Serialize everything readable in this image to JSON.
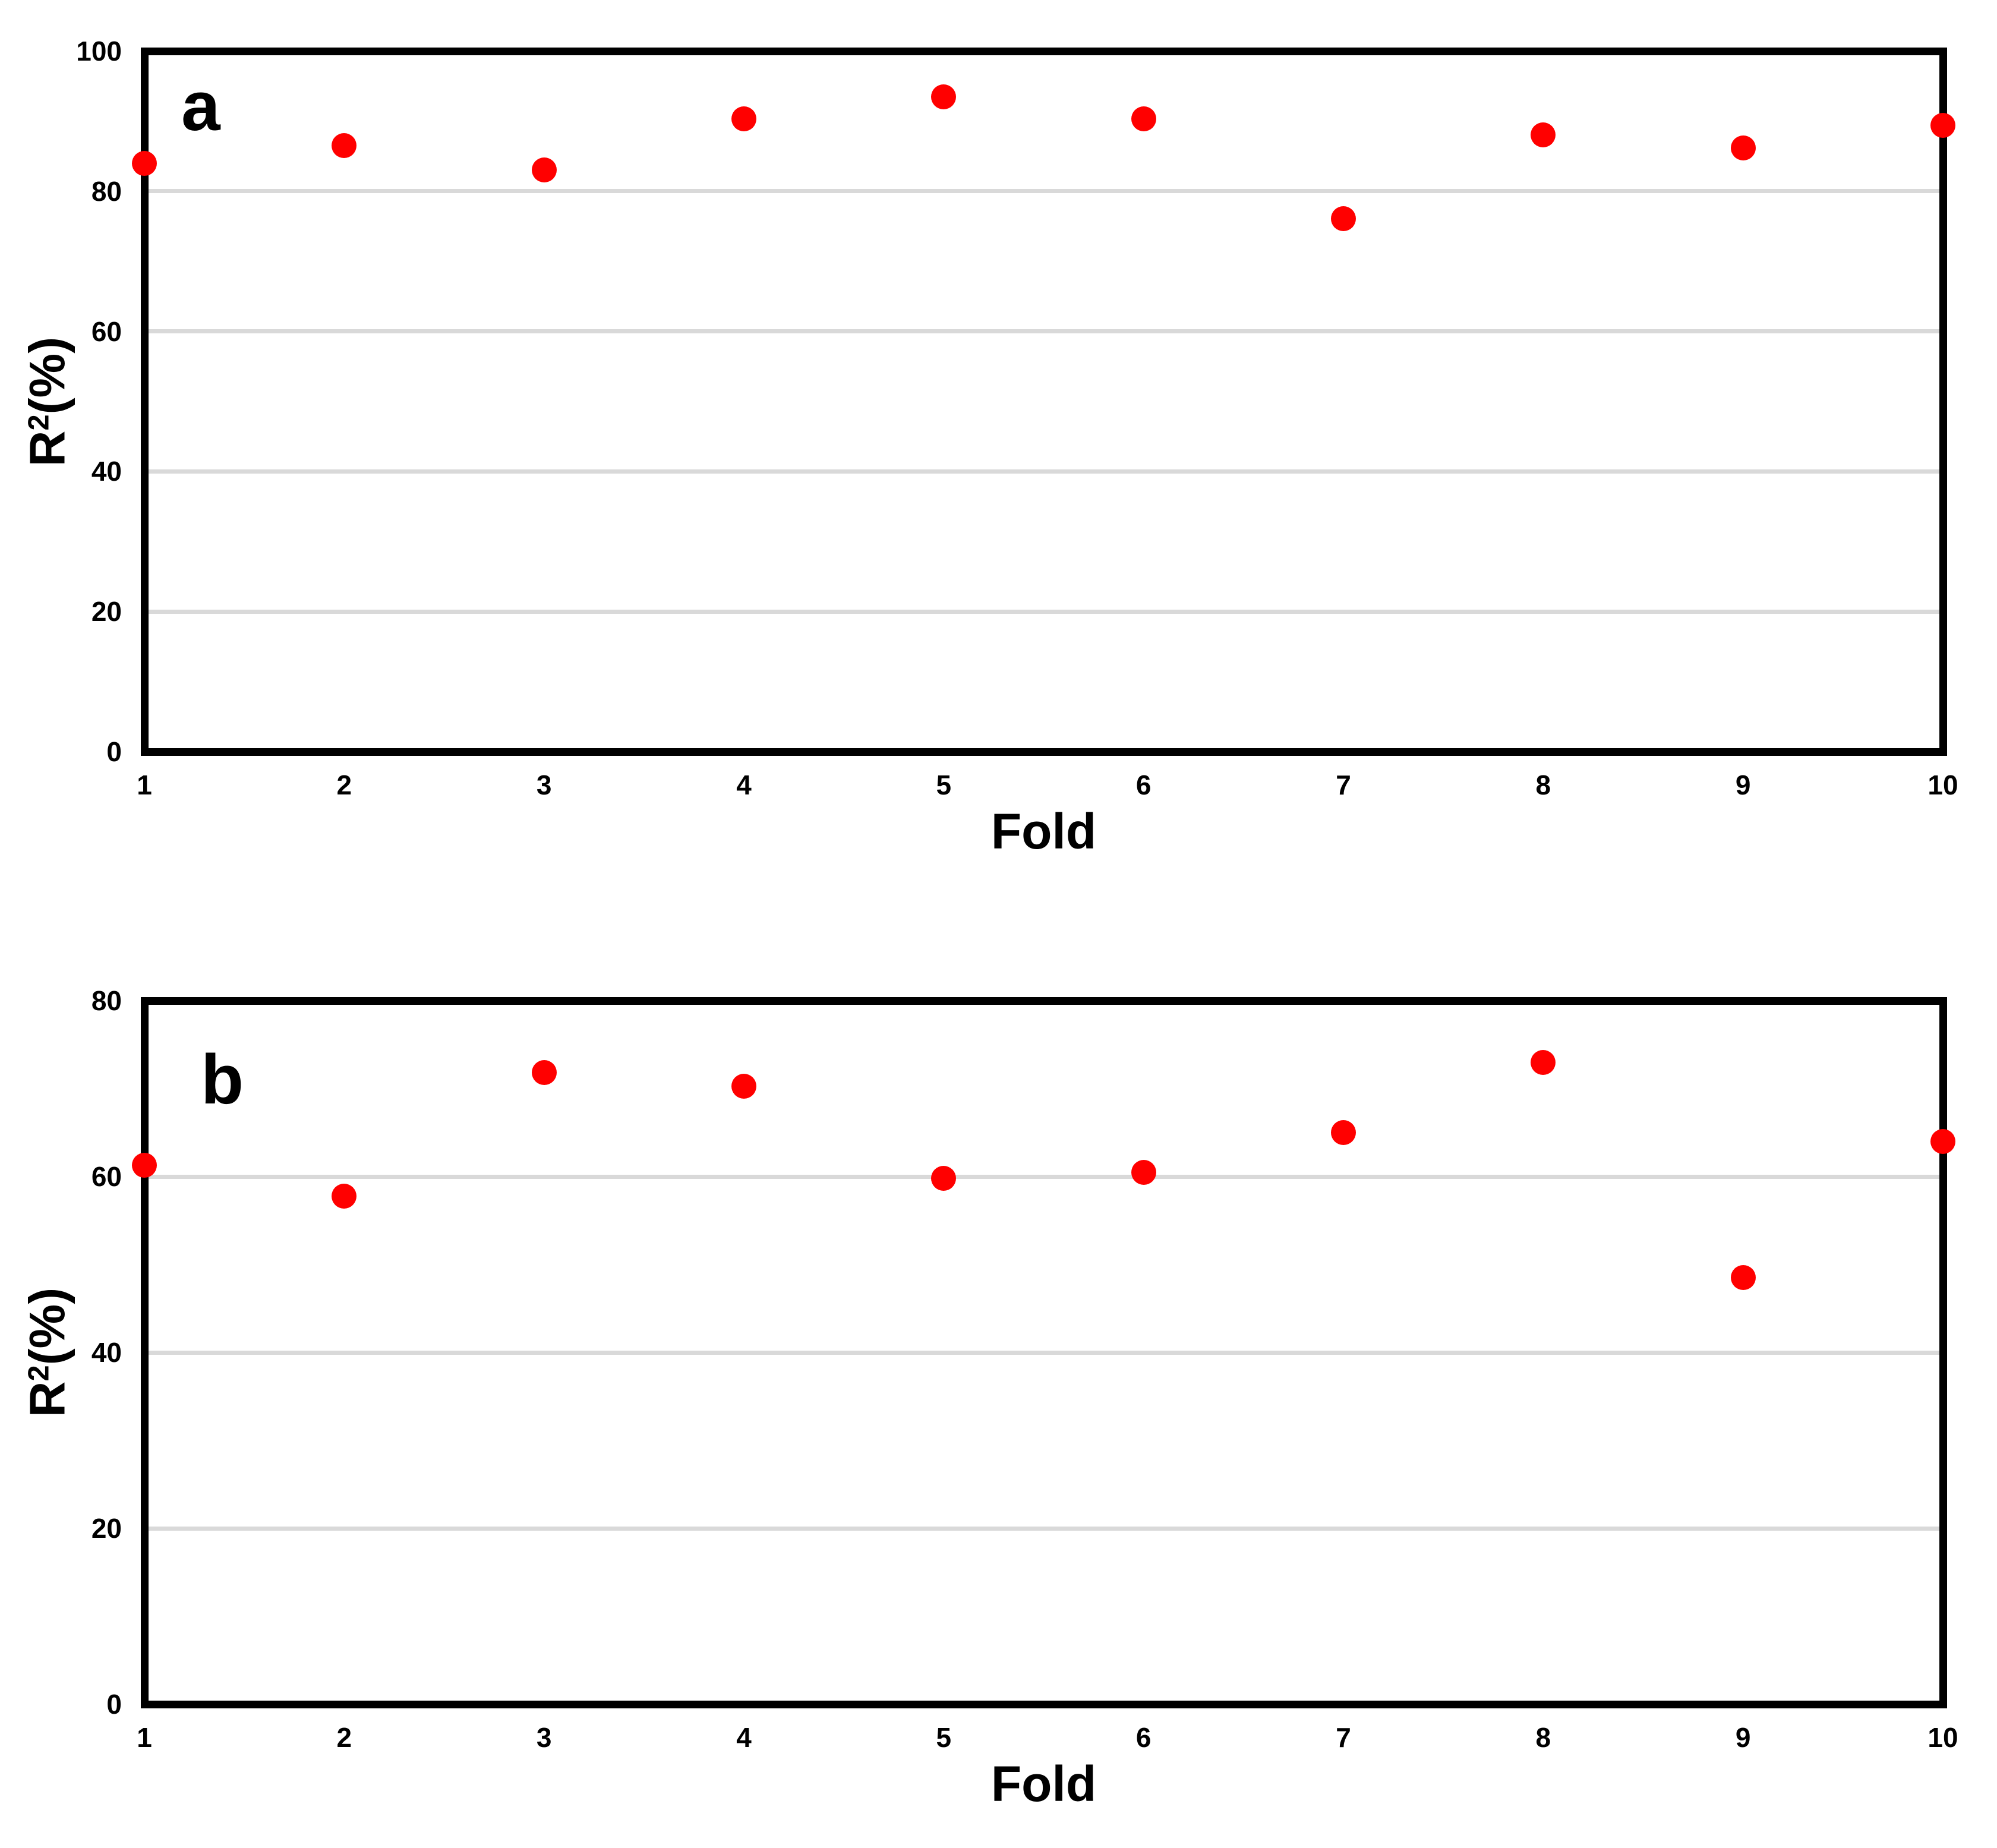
{
  "figure": {
    "background": "#ffffff",
    "description": "Two stacked scatter panels of cross-validation R-squared percentage per fold"
  },
  "colors": {
    "marker": "#ff0000",
    "gridline": "#d9d9d9",
    "axis": "#000000",
    "text": "#000000"
  },
  "chart_data": [
    {
      "type": "scatter",
      "panel_label": "a",
      "xlabel": "Fold",
      "ylabel": "R²(%)",
      "ylabel_base": "R",
      "ylabel_sup": "2",
      "ylabel_rest": "(%)",
      "x": [
        1,
        2,
        3,
        4,
        5,
        6,
        7,
        8,
        9,
        10
      ],
      "values": [
        84,
        86.5,
        83,
        90.3,
        93.5,
        90.3,
        76.1,
        88,
        86.2,
        89.4
      ],
      "ylim": [
        0,
        100
      ],
      "yticks": [
        0,
        20,
        40,
        60,
        80,
        100
      ],
      "xlim": [
        1,
        10
      ],
      "grid": "horizontal",
      "legend": "none",
      "marker": {
        "shape": "circle",
        "color": "#ff0000"
      }
    },
    {
      "type": "scatter",
      "panel_label": "b",
      "xlabel": "Fold",
      "ylabel": "R²(%)",
      "ylabel_base": "R",
      "ylabel_sup": "2",
      "ylabel_rest": "(%)",
      "x": [
        1,
        2,
        3,
        4,
        5,
        6,
        7,
        8,
        9,
        10
      ],
      "values": [
        61.3,
        57.8,
        71.8,
        70.3,
        59.8,
        60.5,
        65,
        73,
        48.5,
        64
      ],
      "ylim": [
        0,
        80
      ],
      "yticks": [
        0,
        20,
        40,
        60,
        80
      ],
      "xlim": [
        1,
        10
      ],
      "grid": "horizontal",
      "legend": "none",
      "marker": {
        "shape": "circle",
        "color": "#ff0000"
      }
    }
  ]
}
